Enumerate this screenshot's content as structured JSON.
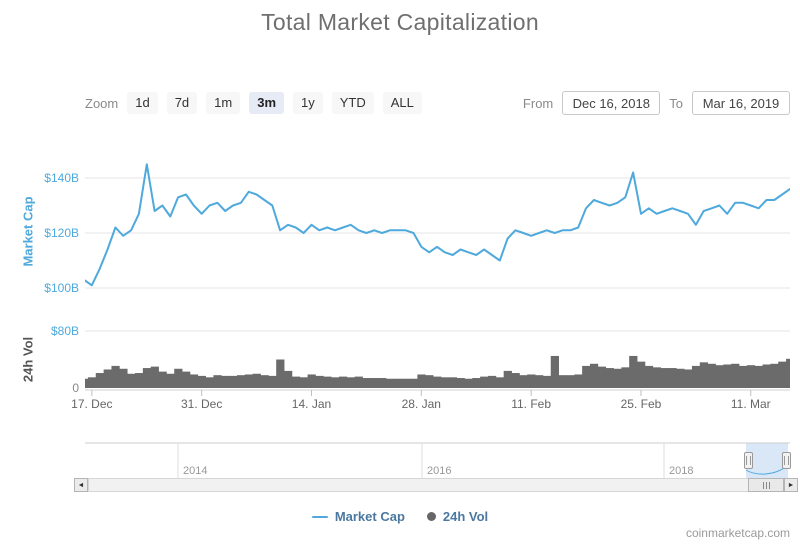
{
  "header": {
    "title": "Total Market Capitalization"
  },
  "toolbar": {
    "zoom_label": "Zoom",
    "buttons": [
      {
        "label": "1d",
        "selected": false
      },
      {
        "label": "7d",
        "selected": false
      },
      {
        "label": "1m",
        "selected": false
      },
      {
        "label": "3m",
        "selected": true
      },
      {
        "label": "1y",
        "selected": false
      },
      {
        "label": "YTD",
        "selected": false
      },
      {
        "label": "ALL",
        "selected": false
      }
    ],
    "from_label": "From",
    "from_value": "Dec 16, 2018",
    "to_label": "To",
    "to_value": "Mar 16, 2019"
  },
  "chart_data": {
    "type": "line",
    "title": "Total Market Capitalization",
    "x_range": [
      "Dec 16, 2018",
      "Mar 16, 2019"
    ],
    "x_tick_labels": [
      "17. Dec",
      "31. Dec",
      "14. Jan",
      "28. Jan",
      "11. Feb",
      "25. Feb",
      "11. Mar"
    ],
    "x_tick_days": [
      1,
      15,
      29,
      43,
      57,
      71,
      85
    ],
    "panes": [
      {
        "name": "market_cap",
        "ylabel": "Market Cap",
        "type": "line",
        "color": "#4fa9dc",
        "ylim": [
          98,
          148
        ],
        "y_ticks": [
          {
            "value": 140,
            "label": "$140B",
            "color": "#4fa9dc"
          },
          {
            "value": 120,
            "label": "$120B",
            "color": "#4fa9dc"
          },
          {
            "value": 100,
            "label": "$100B",
            "color": "#4fa9dc"
          }
        ],
        "unit": "USD billions",
        "values": [
          103,
          101,
          107,
          114,
          122,
          119,
          121,
          127,
          145,
          128,
          130,
          126,
          133,
          134,
          130,
          127,
          130,
          131,
          128,
          130,
          131,
          135,
          134,
          132,
          130,
          121,
          123,
          122,
          120,
          123,
          121,
          122,
          121,
          122,
          123,
          121,
          120,
          121,
          120,
          121,
          121,
          121,
          120,
          115,
          113,
          115,
          113,
          112,
          114,
          113,
          112,
          114,
          112,
          110,
          118,
          121,
          120,
          119,
          120,
          121,
          120,
          121,
          121,
          122,
          129,
          132,
          131,
          130,
          131,
          133,
          142,
          127,
          129,
          127,
          128,
          129,
          128,
          127,
          123,
          128,
          129,
          130,
          127,
          131,
          131,
          130,
          129,
          132,
          132,
          134,
          136
        ]
      },
      {
        "name": "volume_24h",
        "ylabel": "24h Vol",
        "type": "column",
        "color": "#6b6b6b",
        "ylim": [
          0,
          80
        ],
        "y_ticks": [
          {
            "value": 80,
            "label": "$80B",
            "color": "#4fa9dc"
          },
          {
            "value": 0,
            "label": "0",
            "color": "#888888"
          }
        ],
        "unit": "USD billions",
        "values": [
          13,
          15,
          21,
          26,
          31,
          27,
          20,
          21,
          28,
          30,
          23,
          20,
          27,
          23,
          19,
          17,
          15,
          18,
          17,
          17,
          18,
          19,
          20,
          18,
          17,
          40,
          24,
          16,
          15,
          19,
          17,
          16,
          15,
          16,
          15,
          16,
          14,
          14,
          14,
          13,
          13,
          13,
          13,
          19,
          18,
          16,
          15,
          15,
          14,
          13,
          14,
          16,
          17,
          15,
          24,
          21,
          18,
          19,
          18,
          17,
          45,
          18,
          18,
          19,
          31,
          34,
          30,
          28,
          27,
          29,
          45,
          37,
          31,
          29,
          28,
          28,
          27,
          26,
          31,
          36,
          34,
          32,
          33,
          34,
          31,
          32,
          31,
          33,
          34,
          37,
          41
        ]
      }
    ],
    "legend_position": "bottom"
  },
  "navigator": {
    "year_labels": [
      "2014",
      "2016",
      "2018"
    ]
  },
  "scrollbar": {
    "left_arrow": "◄",
    "right_arrow": "►"
  },
  "legend": {
    "items": [
      {
        "label": "Market Cap",
        "marker": "line",
        "color": "#4fa9dc"
      },
      {
        "label": "24h Vol",
        "marker": "circle",
        "color": "#666666"
      }
    ]
  },
  "footer": {
    "watermark": "coinmarketcap.com"
  }
}
